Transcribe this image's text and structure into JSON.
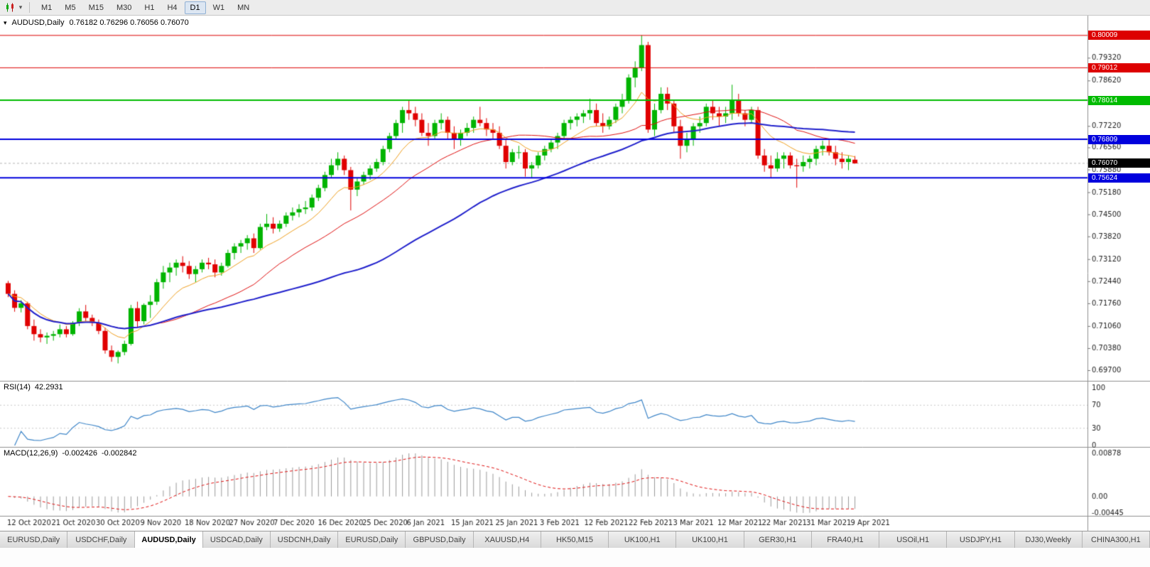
{
  "toolbar": {
    "timeframes": [
      {
        "label": "M1",
        "active": false
      },
      {
        "label": "M5",
        "active": false
      },
      {
        "label": "M15",
        "active": false
      },
      {
        "label": "M30",
        "active": false
      },
      {
        "label": "H1",
        "active": false
      },
      {
        "label": "H4",
        "active": false
      },
      {
        "label": "D1",
        "active": true
      },
      {
        "label": "W1",
        "active": false
      },
      {
        "label": "MN",
        "active": false
      }
    ]
  },
  "header": {
    "symbol": "AUDUSD,Daily",
    "ohlc": "0.76182 0.76296 0.76056 0.76070"
  },
  "rsi": {
    "label": "RSI(14)",
    "value": "42.2931",
    "axis": [
      "100",
      "70",
      "30",
      "0"
    ]
  },
  "macd": {
    "label": "MACD(12,26,9)",
    "value_main": "-0.002426",
    "value_signal": "-0.002842",
    "axis": [
      "0.00878",
      "0.00",
      "-0.00445"
    ]
  },
  "price_axis": {
    "ticks": [
      "0.79320",
      "0.78620",
      "0.77920",
      "0.77220",
      "0.76560",
      "0.75880",
      "0.75180",
      "0.74500",
      "0.73820",
      "0.73120",
      "0.72440",
      "0.71760",
      "0.71060",
      "0.70380",
      "0.69700"
    ]
  },
  "date_axis": [
    "12 Oct 2020",
    "21 Oct 2020",
    "30 Oct 2020",
    "9 Nov 2020",
    "18 Nov 2020",
    "27 Nov 2020",
    "7 Dec 2020",
    "16 Dec 2020",
    "25 Dec 2020",
    "6 Jan 2021",
    "15 Jan 2021",
    "25 Jan 2021",
    "3 Feb 2021",
    "12 Feb 2021",
    "22 Feb 2021",
    "3 Mar 2021",
    "12 Mar 2021",
    "22 Mar 2021",
    "31 Mar 2021",
    "9 Apr 2021"
  ],
  "tabs": [
    {
      "label": "EURUSD,Daily",
      "active": false
    },
    {
      "label": "USDCHF,Daily",
      "active": false
    },
    {
      "label": "AUDUSD,Daily",
      "active": true
    },
    {
      "label": "USDCAD,Daily",
      "active": false
    },
    {
      "label": "USDCNH,Daily",
      "active": false
    },
    {
      "label": "EURUSD,Daily",
      "active": false
    },
    {
      "label": "GBPUSD,Daily",
      "active": false
    },
    {
      "label": "XAUUSD,H4",
      "active": false
    },
    {
      "label": "HK50,M15",
      "active": false
    },
    {
      "label": "UK100,H1",
      "active": false
    },
    {
      "label": "UK100,H1",
      "active": false
    },
    {
      "label": "GER30,H1",
      "active": false
    },
    {
      "label": "FRA40,H1",
      "active": false
    },
    {
      "label": "USOil,H1",
      "active": false
    },
    {
      "label": "USDJPY,H1",
      "active": false
    },
    {
      "label": "DJ30,Weekly",
      "active": false
    },
    {
      "label": "CHINA300,H1",
      "active": false
    }
  ],
  "chart_data": {
    "type": "candlestick",
    "symbol": "AUDUSD",
    "timeframe": "Daily",
    "view": {
      "price_max": 0.8053,
      "price_min": 0.6946
    },
    "levels": [
      {
        "value": 0.80009,
        "label": "0.80009",
        "color": "#dd0000",
        "width": 1
      },
      {
        "value": 0.79012,
        "label": "0.79012",
        "color": "#dd0000",
        "width": 1
      },
      {
        "value": 0.78014,
        "label": "0.78014",
        "color": "#00bb00",
        "width": 2
      },
      {
        "value": 0.76809,
        "label": "0.76809",
        "color": "#0000dd",
        "width": 2
      },
      {
        "value": 0.75624,
        "label": "0.75624",
        "color": "#0000dd",
        "width": 2
      }
    ],
    "current_price": {
      "value": 0.7607,
      "label": "0.76070",
      "color": "#000000"
    },
    "moving_averages": [
      {
        "name": "ma-fast",
        "method": "ema",
        "period": 10,
        "color": "#f0a020",
        "width": 1
      },
      {
        "name": "ma-mid",
        "method": "sma",
        "period": 24,
        "color": "#e01010",
        "width": 1
      },
      {
        "name": "ma-slow",
        "method": "sma",
        "period": 55,
        "color": "#2020cc",
        "width": 2
      }
    ],
    "indicators": {
      "rsi": {
        "period": 14,
        "last": 42.2931,
        "range": [
          0,
          100
        ],
        "guides": [
          70,
          30
        ],
        "color": "#3d85c8"
      },
      "macd": {
        "fast": 12,
        "slow": 26,
        "signal": 9,
        "last_main": -0.002426,
        "last_signal": -0.002842,
        "hist_color": "#9a9a9a",
        "signal_color": "#e01010"
      }
    },
    "candles": [
      [
        0.7238,
        0.7245,
        0.7195,
        0.7205
      ],
      [
        0.7205,
        0.7216,
        0.715,
        0.7162
      ],
      [
        0.7162,
        0.7186,
        0.7148,
        0.7176
      ],
      [
        0.7176,
        0.7181,
        0.7096,
        0.7106
      ],
      [
        0.7106,
        0.7126,
        0.7061,
        0.7081
      ],
      [
        0.7081,
        0.7096,
        0.7056,
        0.7071
      ],
      [
        0.7071,
        0.7086,
        0.7051,
        0.7076
      ],
      [
        0.7076,
        0.7091,
        0.7061,
        0.7081
      ],
      [
        0.7081,
        0.7111,
        0.7071,
        0.7096
      ],
      [
        0.7096,
        0.7106,
        0.7071,
        0.7081
      ],
      [
        0.7081,
        0.7121,
        0.7076,
        0.7116
      ],
      [
        0.7116,
        0.7161,
        0.7106,
        0.7151
      ],
      [
        0.7151,
        0.7171,
        0.7121,
        0.7131
      ],
      [
        0.7131,
        0.7141,
        0.7106,
        0.7116
      ],
      [
        0.7116,
        0.7126,
        0.7081,
        0.7091
      ],
      [
        0.7091,
        0.7101,
        0.7021,
        0.7031
      ],
      [
        0.7031,
        0.7046,
        0.6996,
        0.7011
      ],
      [
        0.7011,
        0.7031,
        0.6991,
        0.7026
      ],
      [
        0.7026,
        0.7061,
        0.7016,
        0.7051
      ],
      [
        0.7051,
        0.7171,
        0.7046,
        0.7161
      ],
      [
        0.7161,
        0.7181,
        0.7101,
        0.7121
      ],
      [
        0.7121,
        0.7176,
        0.7111,
        0.7171
      ],
      [
        0.7171,
        0.7201,
        0.7131,
        0.7181
      ],
      [
        0.7181,
        0.7251,
        0.7171,
        0.7241
      ],
      [
        0.7241,
        0.7291,
        0.7221,
        0.7271
      ],
      [
        0.7271,
        0.7301,
        0.7241,
        0.7286
      ],
      [
        0.7286,
        0.7311,
        0.7261,
        0.7301
      ],
      [
        0.7301,
        0.7321,
        0.7271,
        0.7291
      ],
      [
        0.7291,
        0.7306,
        0.7251,
        0.7266
      ],
      [
        0.7266,
        0.7291,
        0.7241,
        0.7281
      ],
      [
        0.7281,
        0.7311,
        0.7271,
        0.7301
      ],
      [
        0.7301,
        0.7316,
        0.7281,
        0.7296
      ],
      [
        0.7296,
        0.7311,
        0.7256,
        0.7271
      ],
      [
        0.7271,
        0.7301,
        0.7261,
        0.7291
      ],
      [
        0.7291,
        0.7341,
        0.7286,
        0.7331
      ],
      [
        0.7331,
        0.7361,
        0.7311,
        0.7351
      ],
      [
        0.7351,
        0.7371,
        0.7331,
        0.7361
      ],
      [
        0.7361,
        0.7386,
        0.7341,
        0.7376
      ],
      [
        0.7376,
        0.7391,
        0.7331,
        0.7346
      ],
      [
        0.7346,
        0.7421,
        0.7341,
        0.7411
      ],
      [
        0.7411,
        0.7451,
        0.7401,
        0.7421
      ],
      [
        0.7421,
        0.7441,
        0.7391,
        0.7406
      ],
      [
        0.7406,
        0.7431,
        0.7396,
        0.7421
      ],
      [
        0.7421,
        0.7456,
        0.7411,
        0.7446
      ],
      [
        0.7446,
        0.7471,
        0.7431,
        0.7456
      ],
      [
        0.7456,
        0.7481,
        0.7441,
        0.7466
      ],
      [
        0.7466,
        0.7491,
        0.7451,
        0.7471
      ],
      [
        0.7471,
        0.7511,
        0.7461,
        0.7501
      ],
      [
        0.7501,
        0.7541,
        0.7491,
        0.7531
      ],
      [
        0.7531,
        0.7581,
        0.7521,
        0.7571
      ],
      [
        0.7571,
        0.7621,
        0.7561,
        0.7601
      ],
      [
        0.7601,
        0.7641,
        0.7586,
        0.7621
      ],
      [
        0.7621,
        0.7631,
        0.7571,
        0.7586
      ],
      [
        0.7586,
        0.7596,
        0.7462,
        0.7526
      ],
      [
        0.7526,
        0.7561,
        0.7506,
        0.7551
      ],
      [
        0.7551,
        0.7581,
        0.7541,
        0.7571
      ],
      [
        0.7571,
        0.7601,
        0.7556,
        0.7591
      ],
      [
        0.7591,
        0.7621,
        0.7581,
        0.7611
      ],
      [
        0.7611,
        0.7661,
        0.7601,
        0.7651
      ],
      [
        0.7651,
        0.7701,
        0.7641,
        0.7691
      ],
      [
        0.7691,
        0.7741,
        0.7681,
        0.7731
      ],
      [
        0.7731,
        0.7781,
        0.7701,
        0.7771
      ],
      [
        0.7771,
        0.7801,
        0.7741,
        0.7761
      ],
      [
        0.7761,
        0.7781,
        0.7721,
        0.7741
      ],
      [
        0.7741,
        0.7761,
        0.7691,
        0.7701
      ],
      [
        0.7701,
        0.7731,
        0.7661,
        0.7691
      ],
      [
        0.7691,
        0.7741,
        0.7681,
        0.7731
      ],
      [
        0.7731,
        0.7761,
        0.7711,
        0.7741
      ],
      [
        0.7741,
        0.7751,
        0.7681,
        0.7701
      ],
      [
        0.7701,
        0.7721,
        0.7651,
        0.7681
      ],
      [
        0.7681,
        0.7711,
        0.7661,
        0.7701
      ],
      [
        0.7701,
        0.7731,
        0.7691,
        0.7716
      ],
      [
        0.7716,
        0.7751,
        0.7701,
        0.7741
      ],
      [
        0.7741,
        0.7781,
        0.7721,
        0.7731
      ],
      [
        0.7731,
        0.7746,
        0.7691,
        0.7711
      ],
      [
        0.7711,
        0.7731,
        0.7681,
        0.7701
      ],
      [
        0.7701,
        0.7721,
        0.7651,
        0.7661
      ],
      [
        0.7661,
        0.7681,
        0.7591,
        0.7611
      ],
      [
        0.7611,
        0.7651,
        0.7601,
        0.7641
      ],
      [
        0.7641,
        0.7661,
        0.7621,
        0.7641
      ],
      [
        0.7641,
        0.7651,
        0.7566,
        0.7591
      ],
      [
        0.7591,
        0.7611,
        0.7562,
        0.7601
      ],
      [
        0.7601,
        0.7641,
        0.7591,
        0.7631
      ],
      [
        0.7631,
        0.7661,
        0.7616,
        0.7651
      ],
      [
        0.7651,
        0.7681,
        0.7641,
        0.7671
      ],
      [
        0.7671,
        0.7701,
        0.7651,
        0.7691
      ],
      [
        0.7691,
        0.7741,
        0.7681,
        0.7731
      ],
      [
        0.7731,
        0.7751,
        0.7711,
        0.7741
      ],
      [
        0.7741,
        0.7761,
        0.7721,
        0.7751
      ],
      [
        0.7751,
        0.7771,
        0.7731,
        0.7761
      ],
      [
        0.7761,
        0.7806,
        0.7741,
        0.7771
      ],
      [
        0.7771,
        0.7791,
        0.7721,
        0.7731
      ],
      [
        0.7731,
        0.7761,
        0.7701,
        0.7721
      ],
      [
        0.7721,
        0.7751,
        0.7711,
        0.7741
      ],
      [
        0.7741,
        0.7791,
        0.7731,
        0.7781
      ],
      [
        0.7781,
        0.7821,
        0.7761,
        0.7801
      ],
      [
        0.7801,
        0.7881,
        0.7791,
        0.7871
      ],
      [
        0.7871,
        0.7921,
        0.7841,
        0.7901
      ],
      [
        0.7901,
        0.8001,
        0.7891,
        0.7971
      ],
      [
        0.7971,
        0.7981,
        0.7701,
        0.7711
      ],
      [
        0.7711,
        0.7791,
        0.7691,
        0.7771
      ],
      [
        0.7771,
        0.7841,
        0.7761,
        0.7821
      ],
      [
        0.7821,
        0.7841,
        0.7771,
        0.7791
      ],
      [
        0.7791,
        0.7801,
        0.7701,
        0.7721
      ],
      [
        0.7721,
        0.7741,
        0.7621,
        0.7661
      ],
      [
        0.7661,
        0.7701,
        0.7641,
        0.7681
      ],
      [
        0.7681,
        0.7731,
        0.7661,
        0.7721
      ],
      [
        0.7721,
        0.7751,
        0.7701,
        0.7731
      ],
      [
        0.7731,
        0.7791,
        0.7721,
        0.7781
      ],
      [
        0.7781,
        0.7801,
        0.7741,
        0.7761
      ],
      [
        0.7761,
        0.7781,
        0.7721,
        0.7751
      ],
      [
        0.7751,
        0.7781,
        0.7731,
        0.7761
      ],
      [
        0.7761,
        0.7849,
        0.7741,
        0.7801
      ],
      [
        0.7801,
        0.7821,
        0.7751,
        0.7761
      ],
      [
        0.7761,
        0.7771,
        0.7721,
        0.7741
      ],
      [
        0.7741,
        0.7781,
        0.7731,
        0.7771
      ],
      [
        0.7771,
        0.7781,
        0.7621,
        0.7631
      ],
      [
        0.7631,
        0.7651,
        0.7581,
        0.7601
      ],
      [
        0.7601,
        0.7631,
        0.7562,
        0.7591
      ],
      [
        0.7591,
        0.7641,
        0.7581,
        0.7621
      ],
      [
        0.7621,
        0.7641,
        0.7591,
        0.7631
      ],
      [
        0.7631,
        0.7641,
        0.7591,
        0.7601
      ],
      [
        0.7601,
        0.7621,
        0.7532,
        0.7598
      ],
      [
        0.7598,
        0.7631,
        0.7581,
        0.7611
      ],
      [
        0.7611,
        0.7631,
        0.7591,
        0.7621
      ],
      [
        0.7621,
        0.7661,
        0.7601,
        0.7651
      ],
      [
        0.7651,
        0.7677,
        0.7631,
        0.7661
      ],
      [
        0.7661,
        0.7681,
        0.7631,
        0.7641
      ],
      [
        0.7641,
        0.7661,
        0.7601,
        0.7621
      ],
      [
        0.7621,
        0.7641,
        0.7591,
        0.7611
      ],
      [
        0.7611,
        0.7631,
        0.7586,
        0.7621
      ],
      [
        0.76182,
        0.76296,
        0.76056,
        0.7607
      ]
    ]
  }
}
